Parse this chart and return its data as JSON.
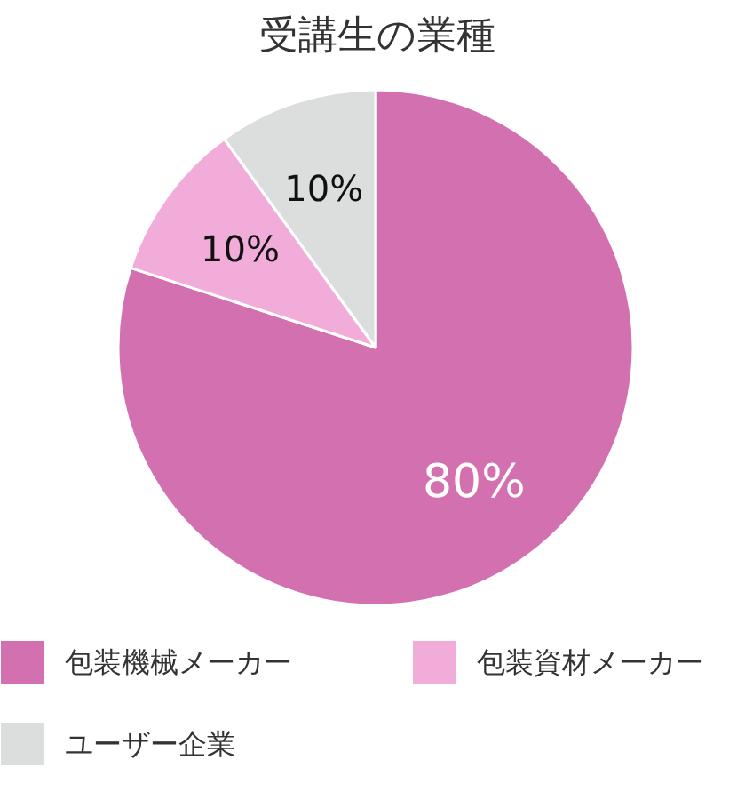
{
  "chart_data": {
    "type": "pie",
    "title": "受講生の業種",
    "categories": [
      "包装機械メーカー",
      "包装資材メーカー",
      "ユーザー企業"
    ],
    "values": [
      80,
      10,
      10
    ],
    "colors": [
      "#d371b0",
      "#f2acda",
      "#dcdddd"
    ],
    "value_labels": [
      "80%",
      "10%",
      "10%"
    ],
    "legend": "bottom"
  }
}
